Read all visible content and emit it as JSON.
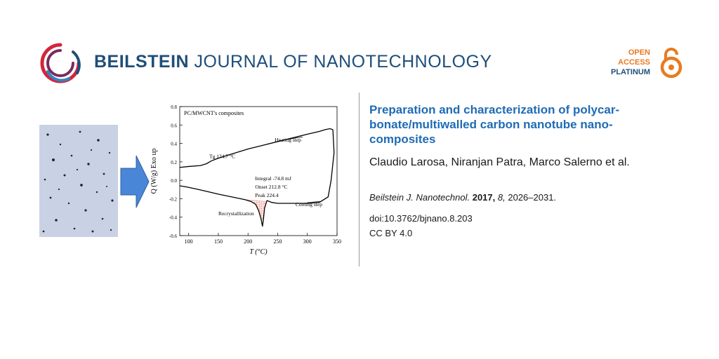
{
  "header": {
    "journal_bold": "BEILSTEIN",
    "journal_rest": "JOURNAL OF NANOTECHNOLOGY",
    "logo_icon": "beilstein-ring-logo",
    "open_access": {
      "line1": "OPEN",
      "line2": "ACCESS",
      "line3": "PLATINUM",
      "icon": "open-lock-icon"
    }
  },
  "colors": {
    "brand_blue": "#1f4e79",
    "title_blue": "#1f6bb5",
    "oa_orange": "#e87b1e",
    "arrow_blue": "#4a86d8"
  },
  "article": {
    "title": "Preparation and characterization of polycarbonate/multiwalled carbon nanotube nanocomposites",
    "title_lines": [
      "Preparation and characterization of polycar-",
      "bonate/multiwalled carbon nanotube nano-",
      "composites"
    ],
    "authors": "Claudio Larosa, Niranjan Patra, Marco Salerno et al.",
    "journal_abbrev": "Beilstein J. Nanotechnol.",
    "year": "2017,",
    "volume": "8,",
    "pages": "2026–2031.",
    "doi": "doi:10.3762/bjnano.8.203",
    "license": "CC BY 4.0"
  },
  "figure": {
    "micrograph_icon": "micrograph-image",
    "arrow_icon": "right-arrow-icon"
  },
  "chart_data": {
    "type": "line",
    "title": "PC/MWCNT's composites",
    "xlabel": "T (°C)",
    "ylabel": "Q (W/g) Exo up",
    "xlim": [
      85,
      350
    ],
    "ylim": [
      -0.6,
      0.8
    ],
    "xticks": [
      "100",
      "150",
      "200",
      "250",
      "300",
      "350"
    ],
    "yticks": [
      "0.8",
      "0.6",
      "0.4",
      "0.2",
      "0.0",
      "-0.2",
      "-0.4",
      "-0.6"
    ],
    "xtick_values": [
      100,
      150,
      200,
      250,
      300,
      350
    ],
    "ytick_values": [
      0.8,
      0.6,
      0.4,
      0.2,
      0.0,
      -0.2,
      -0.4,
      -0.6
    ],
    "series": [
      {
        "values_x": [
          85,
          100,
          120,
          130,
          138,
          150,
          175,
          200,
          225,
          250,
          275,
          300,
          320,
          330,
          338,
          343
        ],
        "values_y": [
          0.14,
          0.15,
          0.16,
          0.18,
          0.21,
          0.24,
          0.29,
          0.34,
          0.38,
          0.42,
          0.46,
          0.5,
          0.53,
          0.55,
          0.56,
          0.55
        ]
      },
      {
        "values_x": [
          343,
          345,
          340,
          335,
          320,
          300,
          280,
          260,
          250,
          240,
          232,
          228,
          226,
          224.4,
          222,
          218,
          212.8,
          205,
          195,
          180,
          165,
          150,
          130,
          110,
          95,
          85
        ],
        "values_y": [
          0.55,
          0.3,
          0.0,
          -0.18,
          -0.24,
          -0.25,
          -0.25,
          -0.25,
          -0.25,
          -0.24,
          -0.22,
          -0.3,
          -0.42,
          -0.5,
          -0.42,
          -0.33,
          -0.26,
          -0.23,
          -0.21,
          -0.19,
          -0.17,
          -0.15,
          -0.12,
          -0.09,
          -0.07,
          -0.06
        ]
      }
    ],
    "annotations": [
      {
        "text": "Tg 134.7 °C",
        "x": 134.7,
        "y": 0.24
      },
      {
        "text": "Heating step",
        "x": 245,
        "y": 0.42
      },
      {
        "text": "Integral -74.8 mJ",
        "x": 212,
        "y": 0.0
      },
      {
        "text": "Onset 212.8 °C",
        "x": 212,
        "y": -0.09
      },
      {
        "text": "Peak 224.4",
        "x": 212,
        "y": -0.18
      },
      {
        "text": "Cooling step",
        "x": 280,
        "y": -0.28
      },
      {
        "text": "Recrystallization",
        "x": 150,
        "y": -0.38
      }
    ],
    "shaded_region": {
      "from_x": 185,
      "to_x": 235,
      "label": "Integral -74.8 mJ"
    },
    "grid": false,
    "legend": "none"
  }
}
